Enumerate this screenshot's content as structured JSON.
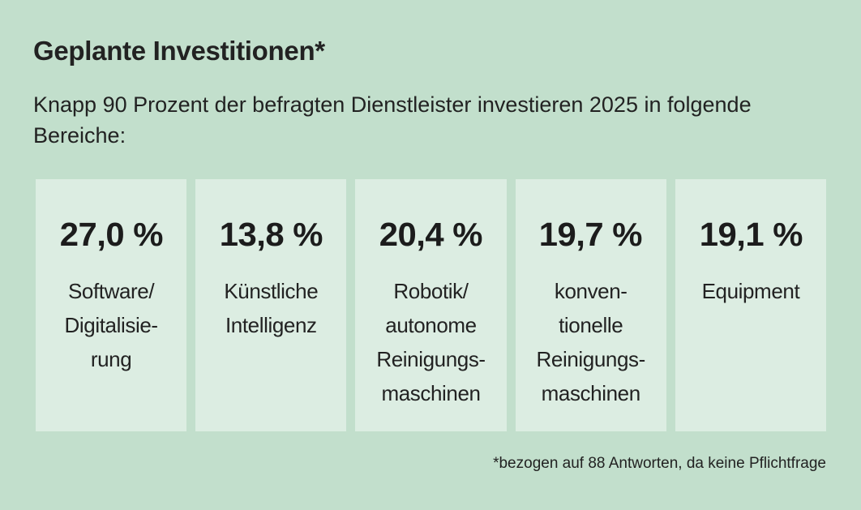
{
  "header": {
    "title": "Geplante Investitionen*",
    "subtitle": "Knapp 90 Prozent der befragten Dienstleister investieren 2025 in folgende Bereiche:"
  },
  "categories": [
    {
      "value": "27,0 %",
      "label_lines": [
        "Software/",
        "Digitalisie-",
        "rung"
      ]
    },
    {
      "value": "13,8 %",
      "label_lines": [
        "Künstliche",
        "Intelligenz"
      ]
    },
    {
      "value": "20,4 %",
      "label_lines": [
        "Robotik/",
        "autonome",
        "Reinigungs-",
        "maschinen"
      ]
    },
    {
      "value": "19,7 %",
      "label_lines": [
        "konven-",
        "tionelle",
        "Reinigungs-",
        "maschinen"
      ]
    },
    {
      "value": "19,1 %",
      "label_lines": [
        "Equipment"
      ]
    }
  ],
  "footnote": "*bezogen auf 88 Antworten, da keine Pflichtfrage",
  "colors": {
    "background": "#c2dfcc",
    "box": "#dcede2",
    "text": "#1e1e1e"
  }
}
